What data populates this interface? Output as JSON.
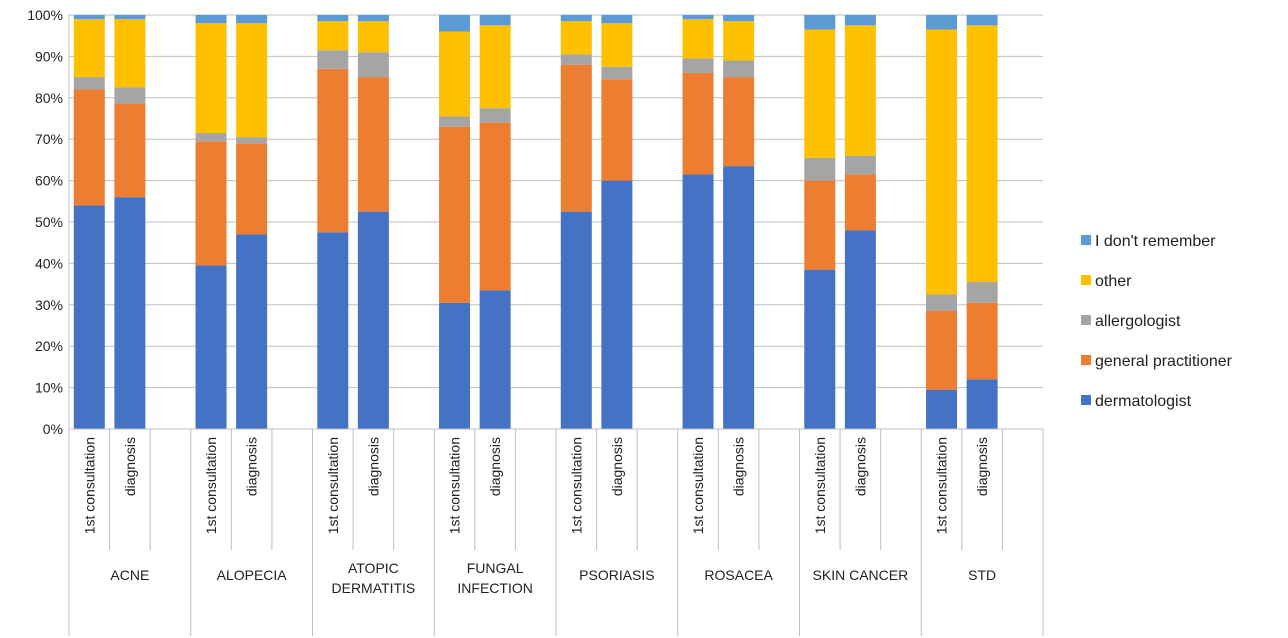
{
  "chart_data": {
    "type": "bar",
    "stacked": true,
    "percent": true,
    "title": "",
    "xlabel": "",
    "ylabel": "",
    "ylim": [
      0,
      100
    ],
    "yticks": [
      "0%",
      "10%",
      "20%",
      "30%",
      "40%",
      "50%",
      "60%",
      "70%",
      "80%",
      "90%",
      "100%"
    ],
    "grid": true,
    "legend_position": "right",
    "groups": [
      "ACNE",
      "ALOPECIA",
      "ATOPIC DERMATITIS",
      "FUNGAL INFECTION",
      "PSORIASIS",
      "ROSACEA",
      "SKIN CANCER",
      "STD"
    ],
    "subcategories": [
      "1st consultation",
      "diagnosis"
    ],
    "series": [
      {
        "name": "dermatologist",
        "color": "#4472C4",
        "values": [
          [
            54,
            56
          ],
          [
            39.5,
            47
          ],
          [
            47.5,
            52.5
          ],
          [
            30.5,
            33.5
          ],
          [
            52.5,
            60
          ],
          [
            61.5,
            63.5
          ],
          [
            38.5,
            48
          ],
          [
            9.5,
            12
          ]
        ]
      },
      {
        "name": "general practitioner",
        "color": "#ED7D31",
        "values": [
          [
            28,
            22.5
          ],
          [
            30,
            22
          ],
          [
            39.5,
            32.5
          ],
          [
            42.5,
            40.5
          ],
          [
            35.5,
            24.5
          ],
          [
            24.5,
            21.5
          ],
          [
            21.5,
            13.5
          ],
          [
            19,
            18.5
          ]
        ]
      },
      {
        "name": "allergologist",
        "color": "#A5A5A5",
        "values": [
          [
            3,
            4
          ],
          [
            2,
            1.5
          ],
          [
            4.5,
            6
          ],
          [
            2.5,
            3.5
          ],
          [
            2.5,
            3
          ],
          [
            3.5,
            4
          ],
          [
            5.5,
            4.5
          ],
          [
            4,
            5
          ]
        ]
      },
      {
        "name": "other",
        "color": "#FFC000",
        "values": [
          [
            14,
            16.5
          ],
          [
            26.5,
            27.5
          ],
          [
            7,
            7.5
          ],
          [
            20.5,
            20
          ],
          [
            8,
            10.5
          ],
          [
            9.5,
            9.5
          ],
          [
            31,
            31.5
          ],
          [
            64,
            62
          ]
        ]
      },
      {
        "name": "I don't remember",
        "color": "#5B9BD5",
        "values": [
          [
            1,
            1
          ],
          [
            2,
            2
          ],
          [
            1.5,
            1.5
          ],
          [
            4,
            2.5
          ],
          [
            1.5,
            2
          ],
          [
            1,
            1.5
          ],
          [
            3.5,
            2.5
          ],
          [
            3.5,
            2.5
          ]
        ]
      }
    ]
  }
}
